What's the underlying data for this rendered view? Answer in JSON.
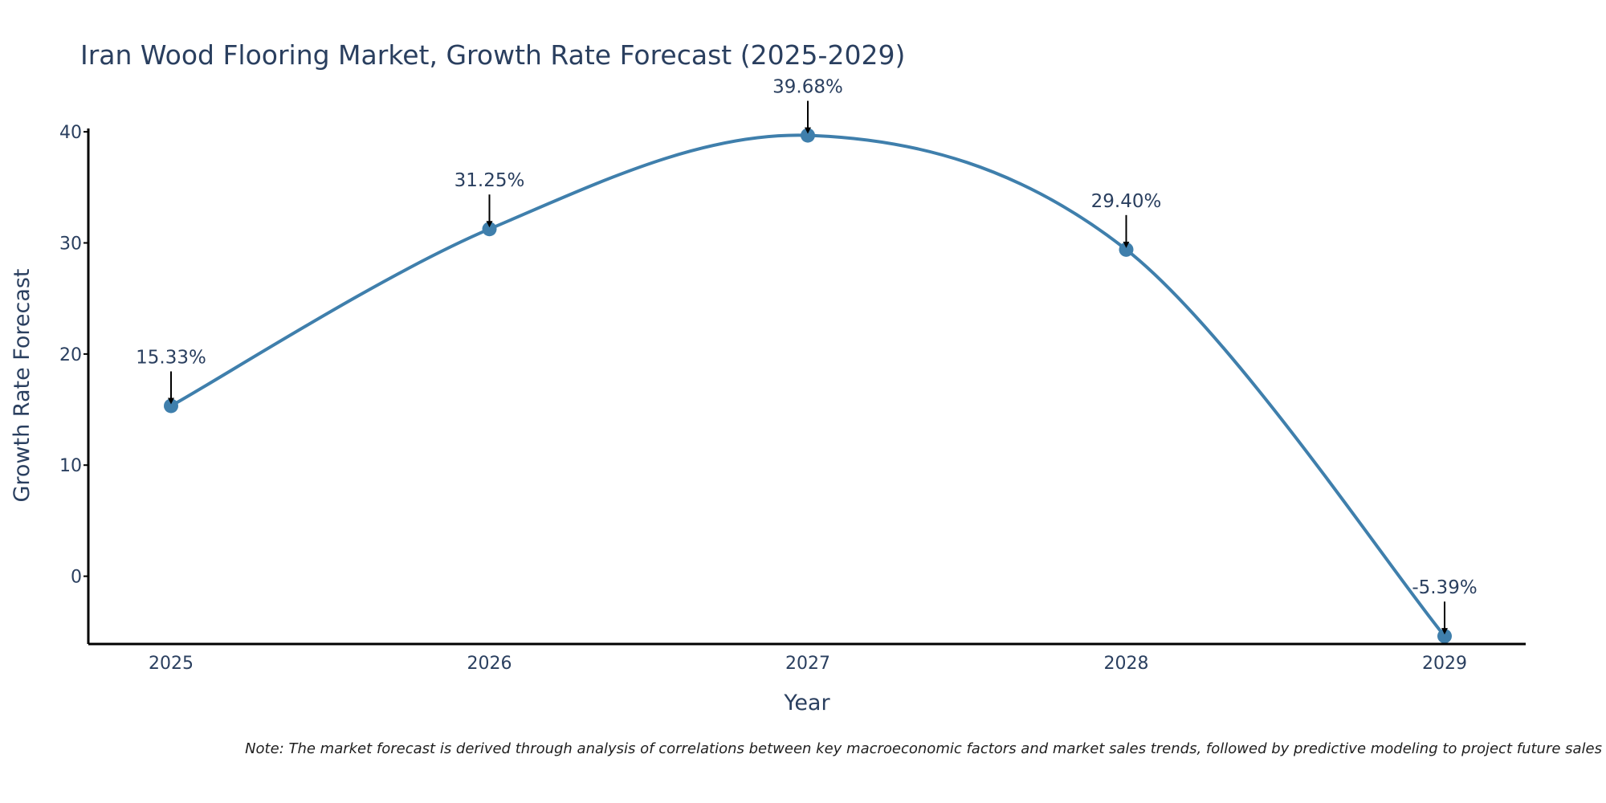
{
  "chart_data": {
    "type": "line",
    "title": "Iran Wood Flooring Market, Growth Rate Forecast (2025-2029)",
    "xlabel": "Year",
    "ylabel": "Growth Rate Forecast",
    "categories": [
      "2025",
      "2026",
      "2027",
      "2028",
      "2029"
    ],
    "values": [
      15.33,
      31.25,
      39.68,
      29.4,
      -5.39
    ],
    "data_labels": [
      "15.33%",
      "31.25%",
      "39.68%",
      "29.40%",
      "-5.39%"
    ],
    "y_ticks": [
      0,
      10,
      20,
      30,
      40
    ],
    "y_tick_labels": [
      "0",
      "10",
      "20",
      "30",
      "40"
    ],
    "ylim": [
      -6.1,
      40.3
    ],
    "grid": false,
    "line_shape": "spline",
    "line_color": "#3f7fac",
    "marker_color": "#3f7fac",
    "arrow_color": "#000000",
    "note": "Note: The market forecast is derived through analysis of correlations between key macroeconomic factors and market sales trends, followed by predictive modeling to project future sales"
  }
}
